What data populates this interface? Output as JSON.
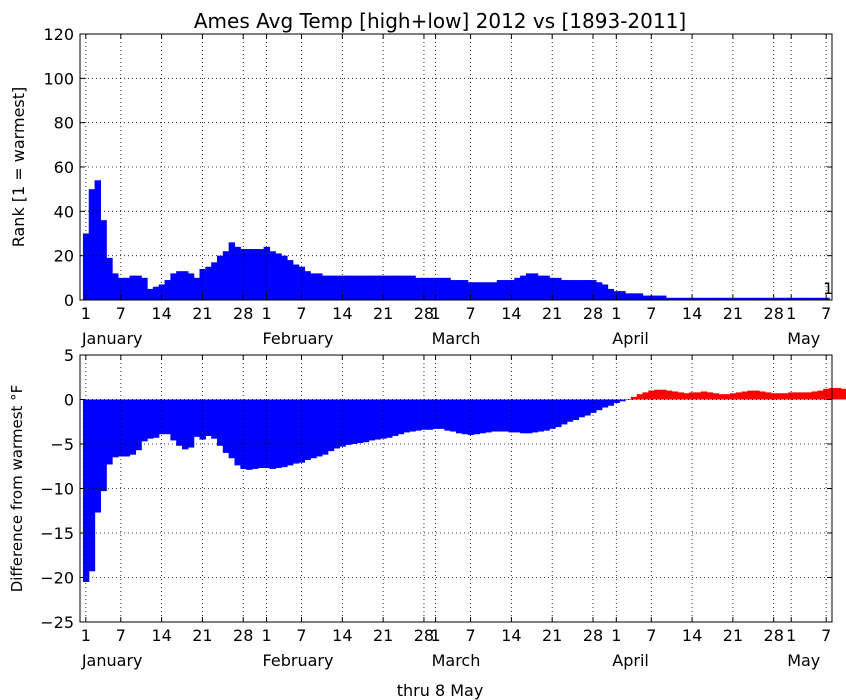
{
  "title": "Ames Avg Temp [high+low] 2012 vs [1893-2011]",
  "footer": "thru 8 May",
  "colors": {
    "negative": "#0000ff",
    "positive": "#ff0000",
    "rank": "#0000ff",
    "grid": "#000000"
  },
  "chart_data": [
    {
      "type": "bar",
      "ylabel": "Rank [1 = warmest]",
      "ylim": [
        0,
        120
      ],
      "yticks": [
        0,
        20,
        40,
        60,
        80,
        100,
        120
      ],
      "grid": true,
      "annotation": {
        "text": "1",
        "day": 128,
        "value": 1
      },
      "x": {
        "days": [
          1,
          7,
          14,
          21,
          28,
          32,
          38,
          45,
          52,
          59,
          61,
          67,
          74,
          81,
          88,
          92,
          98,
          105,
          112,
          119,
          122,
          128
        ],
        "labels": [
          "1",
          "7",
          "14",
          "21",
          "28",
          "1",
          "7",
          "14",
          "21",
          "28",
          "1",
          "7",
          "14",
          "21",
          "28",
          "1",
          "7",
          "14",
          "21",
          "28",
          "1",
          "7"
        ],
        "months": [
          {
            "label": "January",
            "day": 1
          },
          {
            "label": "February",
            "day": 32
          },
          {
            "label": "March",
            "day": 61
          },
          {
            "label": "April",
            "day": 92
          },
          {
            "label": "May",
            "day": 122
          }
        ],
        "range": [
          0,
          129
        ]
      },
      "values": [
        30,
        50,
        54,
        36,
        19,
        12,
        10,
        10,
        11,
        11,
        10,
        5,
        6,
        7,
        9,
        12,
        13,
        13,
        12,
        10,
        14,
        15,
        17,
        20,
        22,
        26,
        24,
        23,
        23,
        23,
        23,
        24,
        22,
        21,
        20,
        18,
        16,
        15,
        13,
        12,
        12,
        11,
        11,
        11,
        11,
        11,
        11,
        11,
        11,
        11,
        11,
        11,
        11,
        11,
        11,
        11,
        11,
        10,
        10,
        10,
        10,
        10,
        10,
        9,
        9,
        9,
        8,
        8,
        8,
        8,
        8,
        9,
        9,
        9,
        10,
        11,
        12,
        12,
        11,
        11,
        10,
        10,
        9,
        9,
        9,
        9,
        9,
        9,
        8,
        7,
        5,
        4,
        4,
        3,
        3,
        3,
        2,
        2,
        2,
        2,
        1,
        1,
        1,
        1,
        1,
        1,
        1,
        1,
        1,
        1,
        1,
        1,
        1,
        1,
        1,
        1,
        1,
        1,
        1,
        1,
        1,
        1,
        1,
        1,
        1,
        1,
        1,
        1
      ]
    },
    {
      "type": "bar",
      "ylabel": "Difference from warmest °F",
      "ylim": [
        -25,
        5
      ],
      "yticks": [
        -25,
        -20,
        -15,
        -10,
        -5,
        0,
        5
      ],
      "grid": true,
      "values": [
        -20.5,
        -19.3,
        -12.7,
        -10.3,
        -7.3,
        -6.5,
        -6.4,
        -6.4,
        -6.2,
        -5.7,
        -4.7,
        -4.4,
        -4.3,
        -3.9,
        -3.9,
        -4.6,
        -5.2,
        -5.6,
        -5.4,
        -4.2,
        -4.5,
        -4.1,
        -4.4,
        -5.2,
        -6.0,
        -6.6,
        -7.4,
        -7.8,
        -7.9,
        -7.8,
        -7.7,
        -7.7,
        -7.8,
        -7.7,
        -7.6,
        -7.4,
        -7.2,
        -7.1,
        -6.8,
        -6.6,
        -6.4,
        -6.2,
        -5.8,
        -5.5,
        -5.3,
        -5.1,
        -5.0,
        -4.9,
        -4.8,
        -4.6,
        -4.5,
        -4.4,
        -4.3,
        -4.1,
        -3.9,
        -3.7,
        -3.6,
        -3.5,
        -3.4,
        -3.4,
        -3.3,
        -3.3,
        -3.5,
        -3.6,
        -3.8,
        -3.9,
        -4.0,
        -3.9,
        -3.8,
        -3.7,
        -3.6,
        -3.6,
        -3.6,
        -3.7,
        -3.7,
        -3.8,
        -3.8,
        -3.7,
        -3.6,
        -3.5,
        -3.3,
        -3.1,
        -2.8,
        -2.5,
        -2.3,
        -2.0,
        -1.8,
        -1.5,
        -1.2,
        -0.9,
        -0.7,
        -0.4,
        -0.2,
        0.0,
        0.3,
        0.6,
        0.8,
        1.0,
        1.1,
        1.1,
        1.0,
        0.9,
        0.8,
        0.7,
        0.8,
        0.8,
        0.9,
        0.8,
        0.7,
        0.6,
        0.6,
        0.7,
        0.8,
        0.9,
        1.0,
        1.0,
        0.9,
        0.8,
        0.7,
        0.7,
        0.7,
        0.8,
        0.8,
        0.8,
        0.8,
        0.9,
        1.0,
        1.2,
        1.3,
        1.3,
        1.2,
        1.1
      ]
    }
  ]
}
